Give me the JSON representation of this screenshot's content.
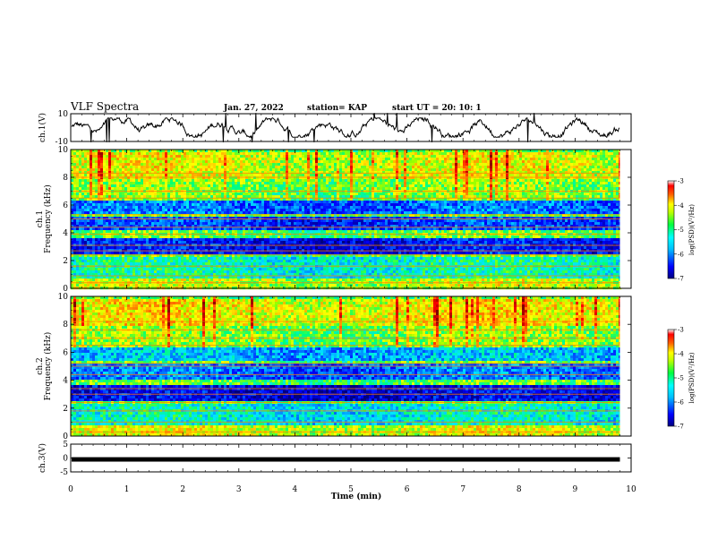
{
  "header": {
    "title": "VLF Spectra",
    "date": "Jan. 27, 2022",
    "station": "station= KAP",
    "start": "start  UT =   20: 10: 1"
  },
  "colorbar": {
    "label": "log(PSD)(V²/Hz)",
    "ticks": [
      "-3",
      "-4",
      "-5",
      "-6",
      "-7"
    ]
  },
  "chart_data": [
    {
      "type": "line",
      "panel": "ch1-waveform",
      "ylabel": "ch.1(V)",
      "ylim": [
        -10,
        10
      ],
      "yticks": [
        "10",
        "-10"
      ],
      "xlim": [
        0,
        10
      ],
      "note": "noisy waveform fluctuating roughly between -8 and 8 V over 0-9.8 min"
    },
    {
      "type": "heatmap",
      "panel": "ch1-spectrogram",
      "ylabel": "ch.1\nFrequency (kHz)",
      "ylabel_lines": [
        "ch.1",
        "Frequency (kHz)"
      ],
      "ylim": [
        0,
        10
      ],
      "yticks": [
        "0",
        "2",
        "4",
        "6",
        "8",
        "10"
      ],
      "xlim": [
        0,
        10
      ],
      "data_extent_min": 9.8,
      "zlim": [
        -7,
        -3
      ],
      "bands_khz": [
        {
          "range": [
            8.0,
            10.0
          ],
          "level": -4.6
        },
        {
          "range": [
            6.6,
            8.0
          ],
          "level": -4.9
        },
        {
          "range": [
            5.5,
            6.5
          ],
          "level": -6.1
        },
        {
          "range": [
            4.2,
            5.2
          ],
          "level": -6.3
        },
        {
          "range": [
            2.6,
            3.8
          ],
          "level": -6.5
        },
        {
          "range": [
            0.9,
            2.4
          ],
          "level": -5.4
        },
        {
          "range": [
            0.0,
            0.9
          ],
          "level": -4.7
        }
      ],
      "lines_khz": [
        0.4,
        0.9,
        1.6,
        2.4,
        2.7,
        3.1,
        3.9,
        4.4,
        5.0,
        5.3,
        6.5,
        7.0,
        8.0,
        8.3
      ]
    },
    {
      "type": "heatmap",
      "panel": "ch2-spectrogram",
      "ylabel": "ch.2\nFrequency (kHz)",
      "ylabel_lines": [
        "ch.2",
        "Frequency (kHz)"
      ],
      "ylim": [
        0,
        10
      ],
      "yticks": [
        "0",
        "2",
        "4",
        "6",
        "8",
        "10"
      ],
      "xlim": [
        0,
        10
      ],
      "data_extent_min": 9.8,
      "zlim": [
        -7,
        -3
      ],
      "bands_khz": [
        {
          "range": [
            8.0,
            10.0
          ],
          "level": -4.5
        },
        {
          "range": [
            6.6,
            8.0
          ],
          "level": -4.9
        },
        {
          "range": [
            5.5,
            6.5
          ],
          "level": -5.8
        },
        {
          "range": [
            4.2,
            5.2
          ],
          "level": -6.1
        },
        {
          "range": [
            2.6,
            3.8
          ],
          "level": -6.6
        },
        {
          "range": [
            0.9,
            2.4
          ],
          "level": -5.5
        },
        {
          "range": [
            0.0,
            0.9
          ],
          "level": -4.6
        }
      ],
      "lines_khz": [
        0.3,
        1.0,
        1.8,
        2.4,
        3.0,
        3.4,
        4.4,
        5.0,
        5.2,
        6.5,
        7.0,
        7.6,
        8.2
      ]
    },
    {
      "type": "line",
      "panel": "ch3-waveform",
      "ylabel": "ch.3(V)",
      "ylim": [
        -5,
        5
      ],
      "yticks": [
        "5",
        "0",
        "-5"
      ],
      "xlim": [
        0,
        10
      ],
      "note": "flat dense signal band near -0.5 V"
    }
  ],
  "xaxis": {
    "label": "Time  (min)",
    "ticks": [
      "0",
      "1",
      "2",
      "3",
      "4",
      "5",
      "6",
      "7",
      "8",
      "9",
      "10"
    ]
  },
  "colors": {
    "scale": [
      "#00007f",
      "#0000ff",
      "#00a0ff",
      "#00ffff",
      "#00ff60",
      "#b0ff00",
      "#ffff00",
      "#ff8000",
      "#ff0000",
      "#800000"
    ]
  }
}
